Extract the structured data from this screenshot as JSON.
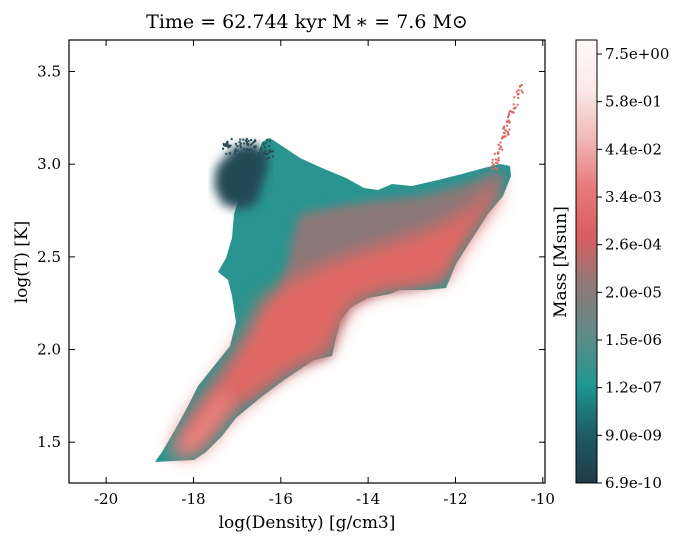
{
  "chart_data": {
    "type": "heatmap",
    "title": "Time = 62.744 kyr    M ∗ = 7.6 M⊙",
    "xlabel": "log(Density) [g/cm3]",
    "ylabel": "log(T) [K]",
    "xlim": [
      -20.85,
      -9.95
    ],
    "ylim": [
      1.28,
      3.67
    ],
    "xticks": [
      -20,
      -18,
      -16,
      -14,
      -12,
      -10
    ],
    "yticks": [
      1.5,
      2.0,
      2.5,
      3.0,
      3.5
    ],
    "xtick_labels": [
      "-20",
      "-18",
      "-16",
      "-14",
      "-12",
      "-10"
    ],
    "ytick_labels": [
      "1.5",
      "2.0",
      "2.5",
      "3.0",
      "3.5"
    ],
    "colorbar": {
      "label": "Mass [Msun]",
      "tick_labels": [
        "6.9e-10",
        "9.0e-09",
        "1.2e-07",
        "1.5e-06",
        "2.0e-05",
        "2.6e-04",
        "3.4e-03",
        "4.4e-02",
        "5.8e-01",
        "7.5e+00"
      ],
      "colors": [
        "#1f3a4a",
        "#1e5c66",
        "#1f9893",
        "#5f8a86",
        "#8e7a79",
        "#d95e5e",
        "#e67a78",
        "#f0b8b6",
        "#fbe9e8",
        "#fff8f8"
      ]
    },
    "regions": [
      {
        "name": "cold-dense-tail",
        "level": 0.72,
        "points": [
          [
            -18.95,
            1.39
          ],
          [
            -18.0,
            1.39
          ],
          [
            -17.4,
            1.55
          ],
          [
            -16.8,
            1.75
          ],
          [
            -15.9,
            1.92
          ],
          [
            -15.0,
            2.03
          ],
          [
            -14.4,
            2.13
          ],
          [
            -13.9,
            2.24
          ],
          [
            -13.3,
            2.31
          ],
          [
            -12.3,
            2.31
          ],
          [
            -11.9,
            2.42
          ],
          [
            -12.3,
            2.4
          ],
          [
            -13.1,
            2.45
          ],
          [
            -14.0,
            2.4
          ],
          [
            -15.1,
            2.2
          ],
          [
            -16.3,
            2.0
          ],
          [
            -17.3,
            1.82
          ],
          [
            -18.2,
            1.57
          ]
        ]
      },
      {
        "name": "main-body",
        "level": 0.55,
        "points": [
          [
            -17.1,
            2.05
          ],
          [
            -16.4,
            2.15
          ],
          [
            -15.5,
            2.28
          ],
          [
            -14.6,
            2.4
          ],
          [
            -13.6,
            2.5
          ],
          [
            -12.6,
            2.58
          ],
          [
            -12.0,
            2.7
          ],
          [
            -11.5,
            2.8
          ],
          [
            -11.6,
            2.68
          ],
          [
            -12.2,
            2.5
          ],
          [
            -12.6,
            2.36
          ],
          [
            -13.4,
            2.3
          ],
          [
            -14.0,
            2.23
          ],
          [
            -14.8,
            2.1
          ],
          [
            -15.6,
            1.98
          ],
          [
            -16.5,
            1.86
          ]
        ]
      },
      {
        "name": "dark-cloud",
        "level": 0.12,
        "points": [
          [
            -17.35,
            2.95
          ],
          [
            -17.0,
            3.1
          ],
          [
            -16.5,
            3.13
          ],
          [
            -16.0,
            3.05
          ],
          [
            -16.2,
            2.8
          ],
          [
            -16.8,
            2.72
          ],
          [
            -17.3,
            2.8
          ]
        ]
      }
    ]
  }
}
